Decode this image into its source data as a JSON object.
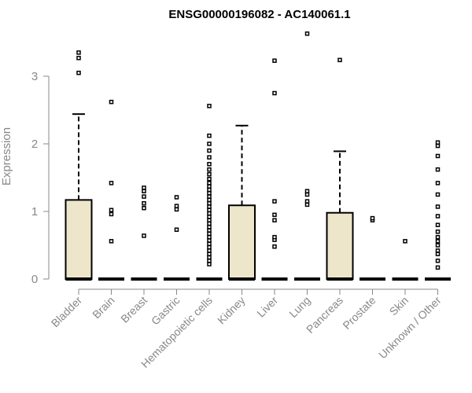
{
  "chart_data": {
    "type": "boxplot",
    "title": "ENSG00000196082 - AC140061.1",
    "xlabel": "",
    "ylabel": "Expression",
    "ylim": [
      0,
      3.65
    ],
    "yticks": [
      0,
      1,
      2,
      3
    ],
    "grid": false,
    "box_fill": "#ede6cb",
    "categories": [
      "Bladder",
      "Brain",
      "Breast",
      "Gastric",
      "Hematopoietic cells",
      "Kidney",
      "Liver",
      "Lung",
      "Pancreas",
      "Prostate",
      "Skin",
      "Unknown / Other"
    ],
    "boxes": [
      {
        "q1": 0,
        "median": 0,
        "q3": 1.17,
        "whisker_low": 0,
        "whisker_high": 2.44,
        "outliers": [
          3.05,
          3.27,
          3.35
        ]
      },
      {
        "q1": 0,
        "median": 0,
        "q3": 0,
        "whisker_low": 0,
        "whisker_high": 0,
        "outliers": [
          0.56,
          0.96,
          1.02,
          1.42,
          2.62
        ]
      },
      {
        "q1": 0,
        "median": 0,
        "q3": 0,
        "whisker_low": 0,
        "whisker_high": 0,
        "outliers": [
          0.64,
          1.05,
          1.12,
          1.22,
          1.3,
          1.35
        ]
      },
      {
        "q1": 0,
        "median": 0,
        "q3": 0,
        "whisker_low": 0,
        "whisker_high": 0,
        "outliers": [
          0.73,
          1.03,
          1.08,
          1.21
        ]
      },
      {
        "q1": 0,
        "median": 0,
        "q3": 0,
        "whisker_low": 0,
        "whisker_high": 0,
        "outliers": [
          0.22,
          0.27,
          0.32,
          0.37,
          0.42,
          0.47,
          0.52,
          0.57,
          0.62,
          0.67,
          0.72,
          0.77,
          0.82,
          0.87,
          0.92,
          0.97,
          1.02,
          1.07,
          1.12,
          1.17,
          1.22,
          1.27,
          1.32,
          1.37,
          1.42,
          1.48,
          1.55,
          1.62,
          1.7,
          1.8,
          1.9,
          2.0,
          2.12,
          2.56
        ]
      },
      {
        "q1": 0,
        "median": 0,
        "q3": 1.09,
        "whisker_low": 0,
        "whisker_high": 2.27,
        "outliers": []
      },
      {
        "q1": 0,
        "median": 0,
        "q3": 0,
        "whisker_low": 0,
        "whisker_high": 0,
        "outliers": [
          0.48,
          0.58,
          0.62,
          0.87,
          0.95,
          1.15,
          2.75,
          3.23
        ]
      },
      {
        "q1": 0,
        "median": 0,
        "q3": 0,
        "whisker_low": 0,
        "whisker_high": 0,
        "outliers": [
          1.1,
          1.15,
          1.25,
          1.3,
          3.63
        ]
      },
      {
        "q1": 0,
        "median": 0,
        "q3": 0.98,
        "whisker_low": 0,
        "whisker_high": 1.89,
        "outliers": [
          3.24
        ]
      },
      {
        "q1": 0,
        "median": 0,
        "q3": 0,
        "whisker_low": 0,
        "whisker_high": 0,
        "outliers": [
          0.87,
          0.9
        ]
      },
      {
        "q1": 0,
        "median": 0,
        "q3": 0,
        "whisker_low": 0,
        "whisker_high": 0,
        "outliers": [
          0.56
        ]
      },
      {
        "q1": 0,
        "median": 0,
        "q3": 0,
        "whisker_low": 0,
        "whisker_high": 0,
        "outliers": [
          0.17,
          0.27,
          0.37,
          0.42,
          0.5,
          0.56,
          0.62,
          0.7,
          0.8,
          0.93,
          1.07,
          1.25,
          1.42,
          1.62,
          1.82,
          1.97,
          2.02
        ]
      }
    ]
  }
}
